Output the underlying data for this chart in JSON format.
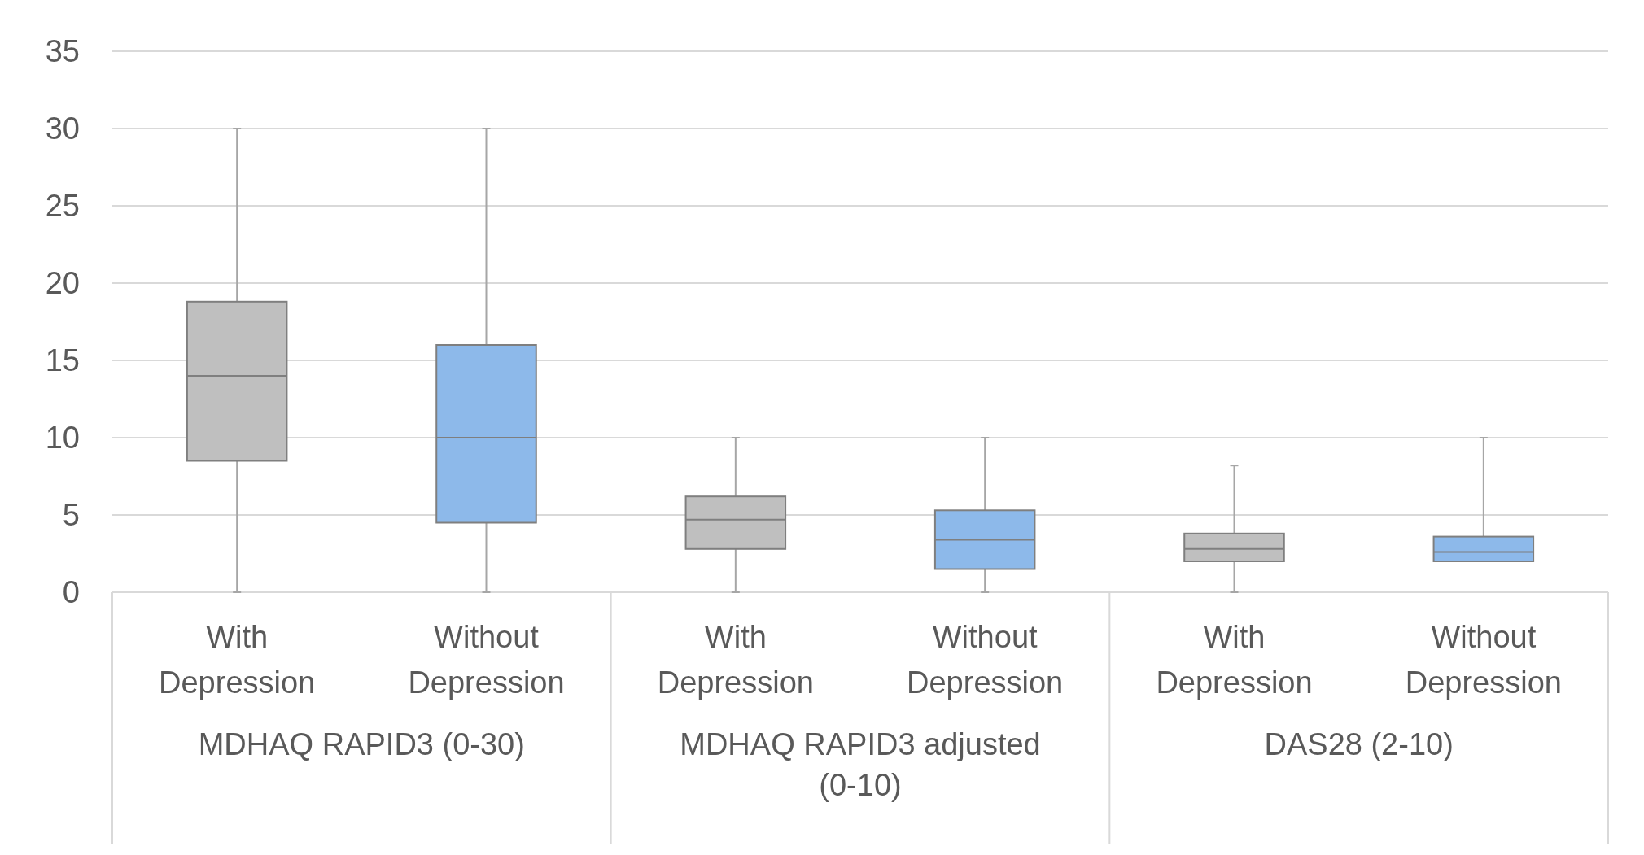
{
  "chart_data": {
    "type": "box",
    "categories": [
      "With Depression",
      "Without Depression",
      "With Depression",
      "Without Depression",
      "With Depression",
      "Without Depression"
    ],
    "boxes": [
      {
        "low": 0,
        "q1": 8.5,
        "median": 14,
        "q3": 18.8,
        "high": 30
      },
      {
        "low": 0,
        "q1": 4.5,
        "median": 10,
        "q3": 16,
        "high": 30
      },
      {
        "low": 0,
        "q1": 2.8,
        "median": 4.7,
        "q3": 6.2,
        "high": 10
      },
      {
        "low": 0,
        "q1": 1.5,
        "median": 3.4,
        "q3": 5.3,
        "high": 10
      },
      {
        "low": 0,
        "q1": 2,
        "median": 2.8,
        "q3": 3.8,
        "high": 8.2
      },
      {
        "low": 2,
        "q1": 2,
        "median": 2.6,
        "q3": 3.6,
        "high": 10
      }
    ],
    "colors": [
      "#bfbfbf",
      "#8db9ea",
      "#bfbfbf",
      "#8db9ea",
      "#bfbfbf",
      "#8db9ea"
    ],
    "annotations": [
      "MDHAQ RAPID3 (0-30)",
      "MDHAQ RAPID3 adjusted (0-10)",
      "DAS28 (2-10)"
    ],
    "ylim": [
      0,
      35
    ],
    "yticks": [
      0,
      5,
      10,
      15,
      20,
      25,
      30,
      35
    ],
    "grid": "y"
  }
}
